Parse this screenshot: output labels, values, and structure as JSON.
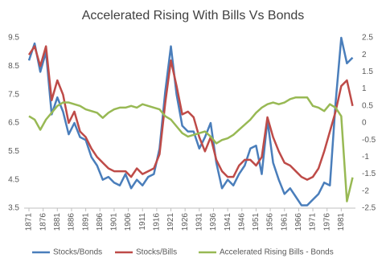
{
  "chart_data": {
    "type": "line",
    "title": "Accelerated Rising With Bills Vs Bonds",
    "x": [
      1871,
      1873,
      1875,
      1877,
      1879,
      1881,
      1883,
      1885,
      1887,
      1889,
      1891,
      1893,
      1895,
      1897,
      1899,
      1901,
      1903,
      1905,
      1907,
      1909,
      1911,
      1913,
      1915,
      1917,
      1919,
      1921,
      1923,
      1925,
      1927,
      1929,
      1931,
      1933,
      1935,
      1937,
      1939,
      1941,
      1943,
      1945,
      1947,
      1949,
      1951,
      1953,
      1955,
      1957,
      1959,
      1961,
      1963,
      1965,
      1967,
      1969,
      1971,
      1973,
      1975,
      1977,
      1979,
      1981,
      1983,
      1985
    ],
    "xlim": [
      1869.3,
      1986
    ],
    "xticks": [
      1871,
      1876,
      1881,
      1886,
      1891,
      1896,
      1901,
      1906,
      1911,
      1916,
      1921,
      1926,
      1931,
      1936,
      1941,
      1946,
      1951,
      1956,
      1961,
      1966,
      1971,
      1976,
      1981
    ],
    "ylim": [
      3.5,
      9.5
    ],
    "yticks": [
      3.5,
      4.5,
      5.5,
      6.5,
      7.5,
      8.5,
      9.5
    ],
    "y2lim": [
      -2.5,
      2.5
    ],
    "y2ticks": [
      -2.5,
      -2,
      -1.5,
      -1,
      -0.5,
      0,
      0.5,
      1,
      1.5,
      2,
      2.5
    ],
    "grid": false,
    "legend": "bottom",
    "series": [
      {
        "name": "Stocks/Bonds",
        "color": "#4a7ebb",
        "values": [
          8.7,
          9.3,
          8.3,
          9.0,
          6.8,
          7.4,
          6.9,
          6.1,
          6.5,
          6.0,
          5.9,
          5.3,
          5.0,
          4.5,
          4.6,
          4.4,
          4.3,
          4.7,
          4.2,
          4.5,
          4.3,
          4.6,
          4.7,
          5.6,
          7.6,
          9.2,
          7.5,
          6.4,
          6.2,
          6.2,
          5.6,
          6.0,
          6.5,
          5.1,
          4.2,
          4.5,
          4.3,
          4.7,
          5.0,
          5.6,
          5.7,
          4.7,
          6.6,
          5.1,
          4.5,
          4.0,
          4.2,
          3.9,
          3.6,
          3.6,
          3.8,
          4.0,
          4.4,
          4.3,
          7.2,
          9.5,
          8.6,
          8.8
        ]
      },
      {
        "name": "Stocks/Bills",
        "color": "#be4b48",
        "values": [
          8.9,
          9.2,
          8.5,
          9.2,
          7.3,
          8.0,
          7.5,
          6.5,
          6.9,
          6.2,
          6.0,
          5.6,
          5.3,
          5.1,
          4.9,
          4.8,
          4.8,
          4.8,
          4.6,
          4.9,
          4.7,
          4.8,
          4.9,
          5.4,
          7.2,
          8.7,
          7.8,
          6.8,
          6.9,
          6.7,
          6.0,
          5.5,
          6.0,
          5.2,
          4.8,
          4.6,
          4.6,
          5.0,
          5.2,
          5.2,
          5.0,
          5.3,
          6.7,
          6.0,
          5.5,
          5.1,
          5.0,
          4.8,
          4.6,
          4.5,
          4.6,
          4.9,
          5.5,
          6.2,
          6.9,
          7.8,
          8.0,
          7.1
        ]
      },
      {
        "name": "Accelerated Rising Bills - Bonds",
        "color": "#98b954",
        "axis": "y2",
        "values": [
          0.2,
          0.1,
          -0.2,
          0.1,
          0.3,
          0.5,
          0.6,
          0.6,
          0.55,
          0.5,
          0.4,
          0.35,
          0.3,
          0.15,
          0.3,
          0.4,
          0.45,
          0.45,
          0.5,
          0.45,
          0.55,
          0.5,
          0.45,
          0.4,
          0.2,
          0.1,
          -0.1,
          -0.3,
          -0.4,
          -0.35,
          -0.3,
          -0.25,
          -0.4,
          -0.6,
          -0.5,
          -0.45,
          -0.35,
          -0.2,
          -0.05,
          0.1,
          0.3,
          0.45,
          0.55,
          0.6,
          0.55,
          0.6,
          0.7,
          0.75,
          0.75,
          0.75,
          0.5,
          0.45,
          0.35,
          0.55,
          0.45,
          0.2,
          -2.3,
          -1.6
        ]
      }
    ]
  }
}
